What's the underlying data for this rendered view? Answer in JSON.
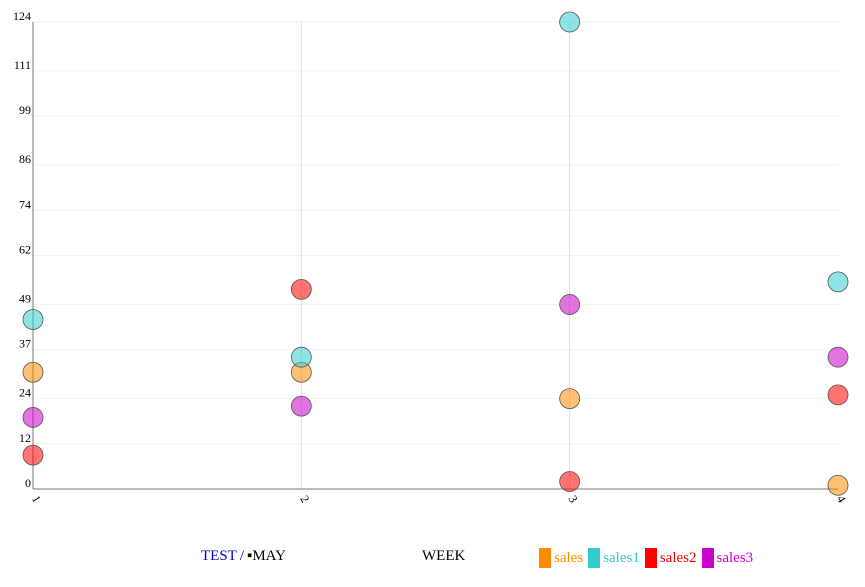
{
  "chart_data": {
    "type": "scatter",
    "x": [
      1,
      2,
      3,
      4
    ],
    "xtick_labels": [
      "1",
      "2",
      "3",
      "4"
    ],
    "ytick_labels": [
      "0",
      "12",
      "24",
      "37",
      "49",
      "62",
      "74",
      "86",
      "99",
      "111",
      "124"
    ],
    "ylim": [
      0,
      124
    ],
    "xlabel": "WEEK",
    "grid": "horizontal",
    "legend_position": "bottom",
    "series": [
      {
        "name": "sales",
        "color": "#ff8c00",
        "values": [
          31,
          31,
          24,
          1
        ]
      },
      {
        "name": "sales1",
        "color": "#33cccc",
        "values": [
          45,
          35,
          124,
          55
        ]
      },
      {
        "name": "sales2",
        "color": "#ff0000",
        "values": [
          9,
          53,
          2,
          25
        ]
      },
      {
        "name": "sales3",
        "color": "#cc00cc",
        "values": [
          19,
          22,
          49,
          35
        ]
      }
    ]
  },
  "breadcrumb": {
    "first": "TEST",
    "separator": "/",
    "current": "▪MAY"
  },
  "colors": {
    "breadcrumb_link": "#0000cc"
  }
}
